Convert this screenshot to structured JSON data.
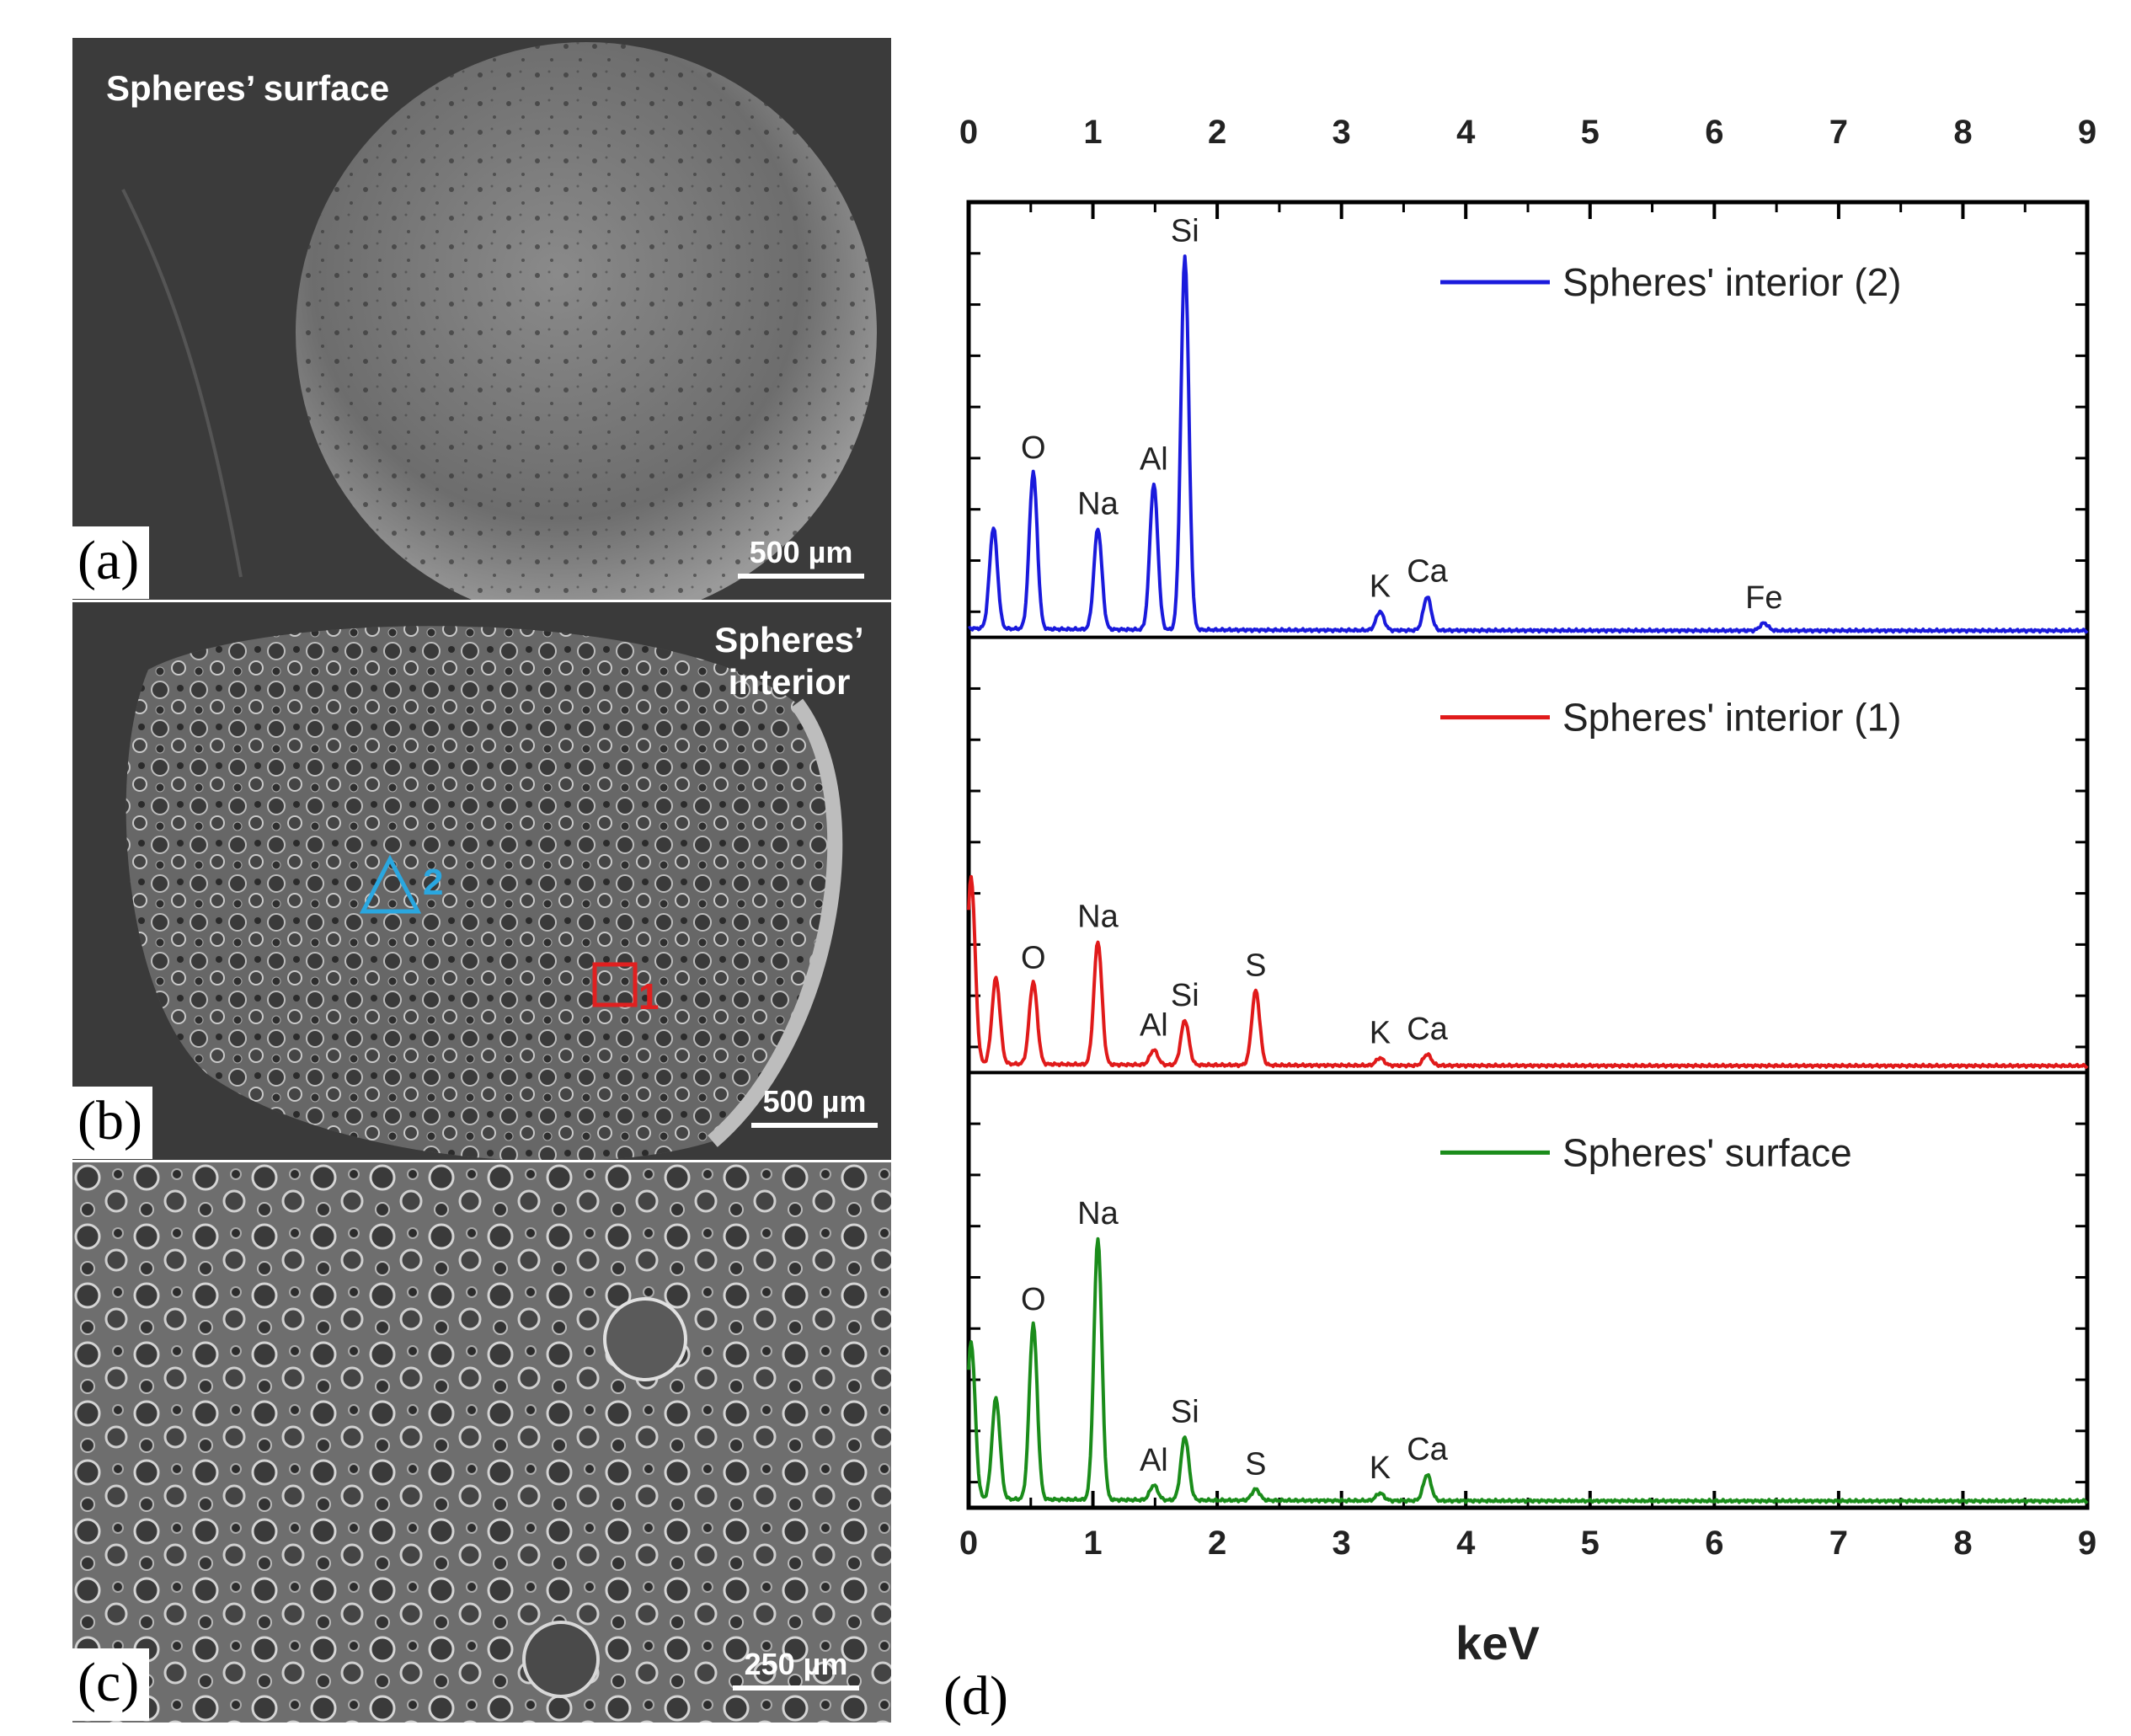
{
  "panels": {
    "a": {
      "letter": "(a)",
      "title": "Spheres’ surface",
      "scale_label": "500 µm"
    },
    "b": {
      "letter": "(b)",
      "title": "Spheres’ interior",
      "scale_label": "500 µm",
      "markers": [
        {
          "label": "2",
          "shape": "triangle",
          "color": "#2aa7e0"
        },
        {
          "label": "1",
          "shape": "square",
          "color": "#e02020"
        }
      ]
    },
    "c": {
      "letter": "(c)",
      "scale_label": "250 µm"
    },
    "d": {
      "letter": "(d)"
    }
  },
  "chart_data": {
    "type": "line",
    "xlabel": "keV",
    "xlim": [
      0,
      9
    ],
    "x_ticks": [
      "0",
      "1",
      "2",
      "3",
      "4",
      "5",
      "6",
      "7",
      "8",
      "9"
    ],
    "ylabel": "",
    "stacked_panels": [
      {
        "series": {
          "name": "Spheres' interior (2)",
          "color": "#1a1adc"
        },
        "peaks": [
          {
            "x": 0.2,
            "y": 0.27,
            "label": ""
          },
          {
            "x": 0.52,
            "y": 0.42,
            "label": "O"
          },
          {
            "x": 1.04,
            "y": 0.27,
            "label": "Na"
          },
          {
            "x": 1.49,
            "y": 0.39,
            "label": "Al"
          },
          {
            "x": 1.74,
            "y": 1.0,
            "label": "Si"
          },
          {
            "x": 3.31,
            "y": 0.05,
            "label": "K"
          },
          {
            "x": 3.69,
            "y": 0.09,
            "label": "Ca"
          },
          {
            "x": 6.4,
            "y": 0.02,
            "label": "Fe"
          }
        ]
      },
      {
        "series": {
          "name": "Spheres' interior (1)",
          "color": "#e01a1a"
        },
        "peaks": [
          {
            "x": 0.02,
            "y": 0.5,
            "label": ""
          },
          {
            "x": 0.22,
            "y": 0.23,
            "label": ""
          },
          {
            "x": 0.52,
            "y": 0.22,
            "label": "O"
          },
          {
            "x": 1.04,
            "y": 0.33,
            "label": "Na"
          },
          {
            "x": 1.49,
            "y": 0.04,
            "label": "Al"
          },
          {
            "x": 1.74,
            "y": 0.12,
            "label": "Si"
          },
          {
            "x": 2.31,
            "y": 0.2,
            "label": "S"
          },
          {
            "x": 3.31,
            "y": 0.02,
            "label": "K"
          },
          {
            "x": 3.69,
            "y": 0.03,
            "label": "Ca"
          }
        ]
      },
      {
        "series": {
          "name": "Spheres' surface",
          "color": "#1a8c1a"
        },
        "peaks": [
          {
            "x": 0.02,
            "y": 0.42,
            "label": ""
          },
          {
            "x": 0.22,
            "y": 0.27,
            "label": ""
          },
          {
            "x": 0.52,
            "y": 0.47,
            "label": "O"
          },
          {
            "x": 1.04,
            "y": 0.7,
            "label": "Na"
          },
          {
            "x": 1.49,
            "y": 0.04,
            "label": "Al"
          },
          {
            "x": 1.74,
            "y": 0.17,
            "label": "Si"
          },
          {
            "x": 2.31,
            "y": 0.03,
            "label": "S"
          },
          {
            "x": 3.31,
            "y": 0.02,
            "label": "K"
          },
          {
            "x": 3.69,
            "y": 0.07,
            "label": "Ca"
          }
        ]
      }
    ]
  }
}
